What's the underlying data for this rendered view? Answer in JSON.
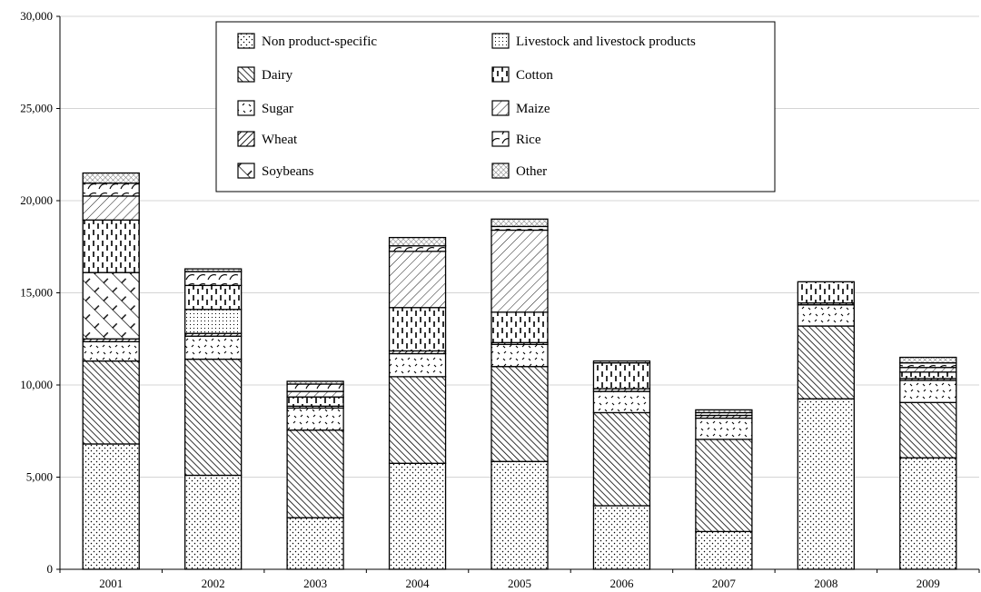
{
  "chart_data": {
    "type": "bar",
    "stacked": true,
    "categories": [
      "2001",
      "2002",
      "2003",
      "2004",
      "2005",
      "2006",
      "2007",
      "2008",
      "2009"
    ],
    "ylim": [
      0,
      30000
    ],
    "yticks": [
      "0",
      "5,000",
      "10,000",
      "15,000",
      "20,000",
      "25,000",
      "30,000"
    ],
    "ytick_values": [
      0,
      5000,
      10000,
      15000,
      20000,
      25000,
      30000
    ],
    "grid": true,
    "legend_position": "top-center",
    "series": [
      {
        "name": "Non product-specific",
        "pattern": "dots",
        "values": [
          6800,
          5100,
          2800,
          5750,
          5850,
          3450,
          2050,
          9250,
          6050
        ]
      },
      {
        "name": "Dairy",
        "pattern": "diag-dense",
        "values": [
          4500,
          6300,
          4750,
          4700,
          5150,
          5050,
          5000,
          3950,
          3000
        ]
      },
      {
        "name": "Sugar",
        "pattern": "checker",
        "values": [
          1050,
          1250,
          1200,
          1250,
          1200,
          1150,
          1150,
          1150,
          1200
        ]
      },
      {
        "name": "Wheat",
        "pattern": "back-diag",
        "values": [
          150,
          150,
          100,
          150,
          100,
          150,
          150,
          100,
          100
        ]
      },
      {
        "name": "Soybeans",
        "pattern": "trellis",
        "values": [
          3600,
          0,
          0,
          0,
          0,
          0,
          0,
          0,
          0
        ]
      },
      {
        "name": "Livestock and livestock products",
        "pattern": "small-dots",
        "values": [
          0,
          1300,
          0,
          0,
          0,
          0,
          0,
          0,
          0
        ]
      },
      {
        "name": "Cotton",
        "pattern": "vbars",
        "values": [
          2850,
          1300,
          500,
          2350,
          1650,
          1400,
          0,
          1150,
          350
        ]
      },
      {
        "name": "Maize",
        "pattern": "diag-sparse",
        "values": [
          1300,
          0,
          300,
          3050,
          4450,
          100,
          150,
          0,
          250
        ]
      },
      {
        "name": "Rice",
        "pattern": "scallops",
        "values": [
          700,
          750,
          400,
          300,
          200,
          0,
          0,
          0,
          250
        ]
      },
      {
        "name": "Other",
        "pattern": "grid",
        "values": [
          550,
          150,
          150,
          450,
          400,
          0,
          150,
          0,
          300
        ]
      }
    ]
  }
}
